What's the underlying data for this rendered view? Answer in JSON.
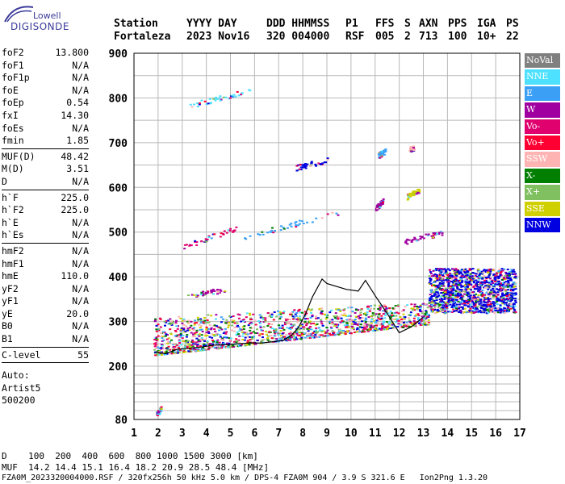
{
  "logo": {
    "brand": "Lowell",
    "name": "DIGISONDE"
  },
  "header": {
    "row1": [
      "Station",
      "YYYY DAY",
      "DDD HHMMSS",
      "P1",
      "FFS",
      "S",
      "AXN",
      "PPS",
      "IGA",
      "PS"
    ],
    "row2": [
      "Fortaleza",
      "2023 Nov16",
      "320 004000",
      "RSF",
      "005",
      "2",
      "713",
      "100",
      "10+",
      "22"
    ]
  },
  "params_groups": [
    [
      [
        "foF2",
        "13.800"
      ],
      [
        "foF1",
        "N/A"
      ],
      [
        "foF1p",
        "N/A"
      ],
      [
        "foE",
        "N/A"
      ],
      [
        "foEp",
        "0.54"
      ],
      [
        "fxI",
        "14.30"
      ],
      [
        "foEs",
        "N/A"
      ],
      [
        "fmin",
        "1.85"
      ]
    ],
    [
      [
        "MUF(D)",
        "48.42"
      ],
      [
        "M(D)",
        "3.51"
      ],
      [
        "D",
        "N/A"
      ]
    ],
    [
      [
        "h`F",
        "225.0"
      ],
      [
        "h`F2",
        "225.0"
      ],
      [
        "h`E",
        "N/A"
      ],
      [
        "h`Es",
        "N/A"
      ]
    ],
    [
      [
        "hmF2",
        "N/A"
      ],
      [
        "hmF1",
        "N/A"
      ],
      [
        "hmE",
        "110.0"
      ],
      [
        "yF2",
        "N/A"
      ],
      [
        "yF1",
        "N/A"
      ],
      [
        "yE",
        "20.0"
      ],
      [
        "B0",
        "N/A"
      ],
      [
        "B1",
        "N/A"
      ]
    ],
    [
      [
        "C-level",
        "55"
      ]
    ]
  ],
  "auto": {
    "l1": "Auto:",
    "l2": "Artist5",
    "l3": "500200"
  },
  "legend": [
    {
      "label": "NoVal",
      "color": "#808080"
    },
    {
      "label": "NNE",
      "color": "#4de1ff"
    },
    {
      "label": "E",
      "color": "#3ba0f5"
    },
    {
      "label": "W",
      "color": "#a000a0"
    },
    {
      "label": "Vo-",
      "color": "#e0006e"
    },
    {
      "label": "Vo+",
      "color": "#ff0033"
    },
    {
      "label": "SSW",
      "color": "#ffb4b4"
    },
    {
      "label": "X-",
      "color": "#007f00"
    },
    {
      "label": "X+",
      "color": "#80c060"
    },
    {
      "label": "SSE",
      "color": "#d0d000"
    },
    {
      "label": "NNW",
      "color": "#0000e0"
    }
  ],
  "footer": {
    "d_line": "D    100  200  400  600  800 1000 1500 3000 [km]",
    "muf_line": "MUF  14.2 14.4 15.1 16.4 18.2 20.9 28.5 48.4 [MHz]",
    "file_line": "FZA0M_2023320004000.RSF / 320fx256h 50 kHz 5.0 km / DPS-4 FZA0M 904 / 3.9 S 321.6 E   Ion2Png 1.3.20"
  },
  "chart_data": {
    "type": "scatter",
    "title": "",
    "xlabel": "",
    "ylabel": "",
    "xlim": [
      1,
      17
    ],
    "ylim": [
      80,
      900
    ],
    "x_ticks": [
      1,
      2,
      3,
      4,
      5,
      6,
      7,
      8,
      9,
      10,
      11,
      12,
      13,
      14,
      15,
      16,
      17
    ],
    "y_ticks": [
      80,
      200,
      300,
      400,
      500,
      600,
      700,
      800,
      900
    ],
    "grid": true,
    "legend_position": "right",
    "trace_line": {
      "x": [
        1.9,
        2.3,
        2.8,
        3.2,
        3.8,
        4.3,
        4.8,
        5.3,
        5.8,
        6.3,
        6.8,
        7.2,
        7.5,
        7.8,
        8.1,
        8.4,
        8.8,
        9.0,
        9.8,
        10.3,
        10.6,
        11.0,
        11.5,
        12.0,
        12.5,
        13.0
      ],
      "y": [
        232,
        228,
        238,
        240,
        243,
        247,
        248,
        250,
        252,
        252,
        255,
        258,
        268,
        285,
        315,
        355,
        395,
        385,
        372,
        368,
        392,
        358,
        318,
        275,
        288,
        310
      ]
    },
    "scatter_groups": [
      {
        "x": [
          3.3,
          5.8
        ],
        "y": [
          784,
          818
        ],
        "color": "#4de1ff"
      },
      {
        "x": [
          7.7,
          9.0
        ],
        "y": [
          645,
          662
        ],
        "color": "#0000e0"
      },
      {
        "x": [
          3.0,
          5.2
        ],
        "y": [
          468,
          510
        ],
        "color": "#e0006e"
      },
      {
        "x": [
          5.5,
          9.5
        ],
        "y": [
          490,
          545
        ],
        "color": "#3ba0f5"
      },
      {
        "x": [
          3.2,
          4.8
        ],
        "y": [
          360,
          372
        ],
        "color": "#a000a0"
      },
      {
        "x": [
          12.2,
          13.8
        ],
        "y": [
          480,
          500
        ],
        "color": "#a000a0"
      },
      {
        "x": [
          11.0,
          11.3
        ],
        "y": [
          555,
          570
        ],
        "color": "#a000a0"
      },
      {
        "x": [
          12.3,
          12.8
        ],
        "y": [
          580,
          595
        ],
        "color": "#d0d000"
      },
      {
        "x": [
          11.1,
          11.4
        ],
        "y": [
          672,
          682
        ],
        "color": "#3ba0f5"
      },
      {
        "x": [
          12.4,
          12.6
        ],
        "y": [
          686,
          690
        ],
        "color": "#ffb4b4"
      },
      {
        "x": [
          1.9,
          2.1
        ],
        "y": [
          92,
          105
        ],
        "color": "#4de1ff"
      }
    ],
    "dense_band": {
      "x": [
        1.8,
        13.2
      ],
      "y_low": [
        225,
        295
      ],
      "y_high": [
        310,
        345
      ]
    },
    "dense_cluster": {
      "x": [
        13.2,
        16.8
      ],
      "y": [
        320,
        420
      ]
    }
  }
}
